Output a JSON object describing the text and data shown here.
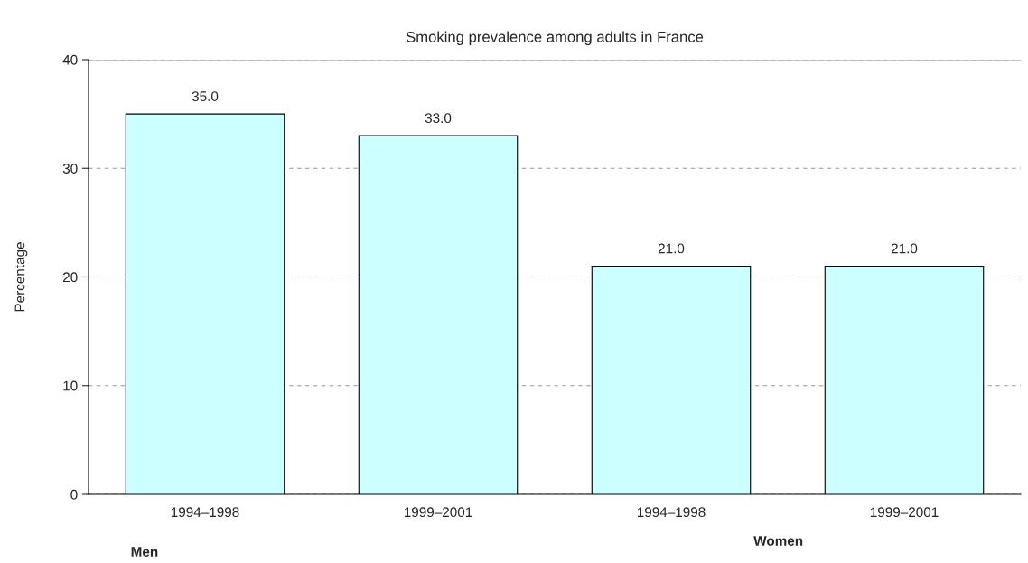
{
  "chart_data": {
    "type": "bar",
    "title": "Smoking prevalence among adults in France",
    "ylabel": "Percentage",
    "categories": [
      "1994–1998",
      "1999–2001",
      "1994–1998",
      "1999–2001"
    ],
    "values": [
      35.0,
      33.0,
      21.0,
      21.0
    ],
    "color": "#ccffff",
    "ylim": [
      0,
      40
    ],
    "yticks": [
      0,
      10,
      20,
      30,
      40
    ],
    "grid": "y",
    "value_labels": [
      "35.0",
      "33.0",
      "21.0",
      "21.0"
    ],
    "annotations": [
      "Men",
      "Women"
    ]
  }
}
